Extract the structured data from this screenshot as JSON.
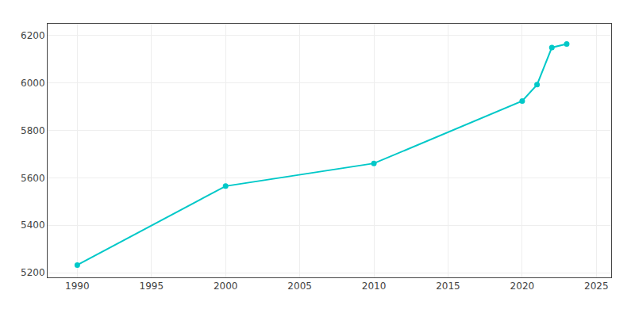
{
  "chart_data": {
    "type": "line",
    "x": [
      1990,
      2000,
      2010,
      2020,
      2021,
      2022,
      2023
    ],
    "values": [
      5232,
      5565,
      5661,
      5924,
      5993,
      6150,
      6165
    ],
    "color": "#00C8C8",
    "marker": "circle",
    "xlim": [
      1988,
      2026
    ],
    "xticks": [
      1990,
      1995,
      2000,
      2005,
      2010,
      2015,
      2020,
      2025
    ],
    "ylim": [
      5180,
      6250
    ],
    "yticks": [
      5200,
      5400,
      5600,
      5800,
      6000,
      6200
    ],
    "grid": true
  }
}
